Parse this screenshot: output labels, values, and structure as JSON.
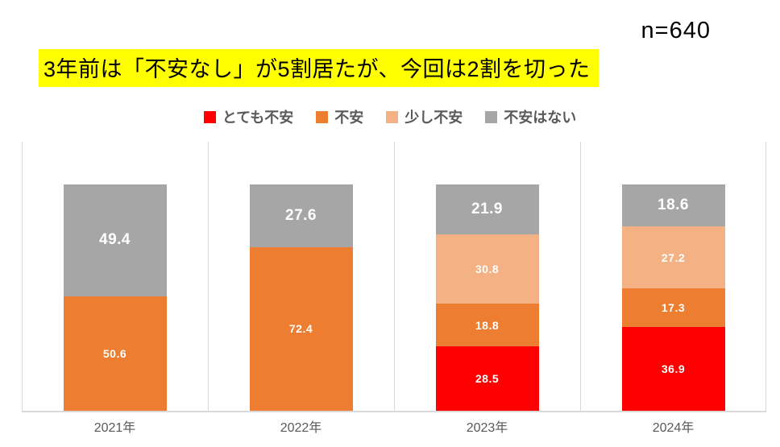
{
  "header": {
    "sample_size": "n=640",
    "title": "3年前は「不安なし」が5割居たが、今回は2割を切った"
  },
  "chart_data": {
    "type": "bar",
    "stacked": true,
    "title": "3年前は「不安なし」が5割居たが、今回は2割を切った",
    "annotation": "n=640",
    "categories": [
      "2021年",
      "2022年",
      "2023年",
      "2024年"
    ],
    "series": [
      {
        "name": "とても不安",
        "color": "#fe0000",
        "values": [
          0,
          0,
          28.5,
          36.9
        ]
      },
      {
        "name": "不安",
        "color": "#ed7d31",
        "values": [
          50.6,
          72.4,
          18.8,
          17.3
        ]
      },
      {
        "name": "少し不安",
        "color": "#f4b183",
        "values": [
          0,
          0,
          30.8,
          27.2
        ]
      },
      {
        "name": "不安はない",
        "color": "#a6a6a6",
        "values": [
          49.4,
          27.6,
          21.9,
          18.6
        ]
      }
    ],
    "xlabel": "",
    "ylabel": "",
    "ylim": [
      0,
      120
    ],
    "data_labels": true,
    "legend_position": "top",
    "grid": "vertical-category-separators"
  },
  "style": {
    "highlight_color": "#ffff00",
    "text_dark": "#595959",
    "axis_color": "#d9d9d9",
    "bar_label_color": "#ffffff"
  }
}
